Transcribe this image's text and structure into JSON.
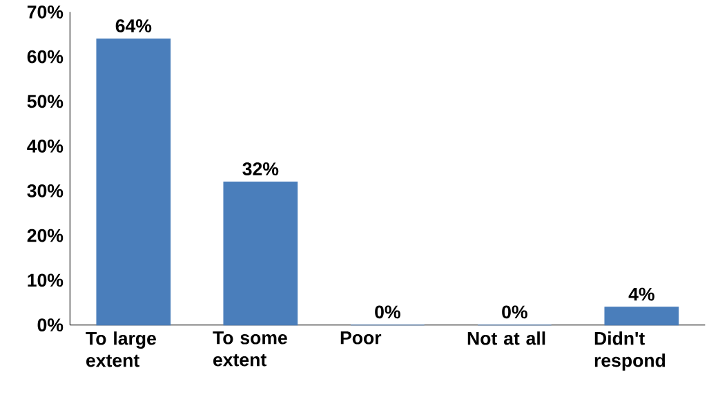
{
  "chart_data": {
    "type": "bar",
    "categories": [
      "To large extent",
      "To some extent",
      "Poor",
      "Not at all",
      "Didn't respond"
    ],
    "values": [
      64,
      32,
      0,
      0,
      4
    ],
    "value_labels": [
      "64%",
      "32%",
      "0%",
      "0%",
      "4%"
    ],
    "color": "#4a7ebb",
    "ylim": [
      0,
      70
    ],
    "yticks": [
      {
        "value": 0,
        "label": "0%"
      },
      {
        "value": 10,
        "label": "10%"
      },
      {
        "value": 20,
        "label": "20%"
      },
      {
        "value": 30,
        "label": "30%"
      },
      {
        "value": 40,
        "label": "40%"
      },
      {
        "value": 50,
        "label": "50%"
      },
      {
        "value": 60,
        "label": "60%"
      },
      {
        "value": 70,
        "label": "70%"
      }
    ]
  }
}
